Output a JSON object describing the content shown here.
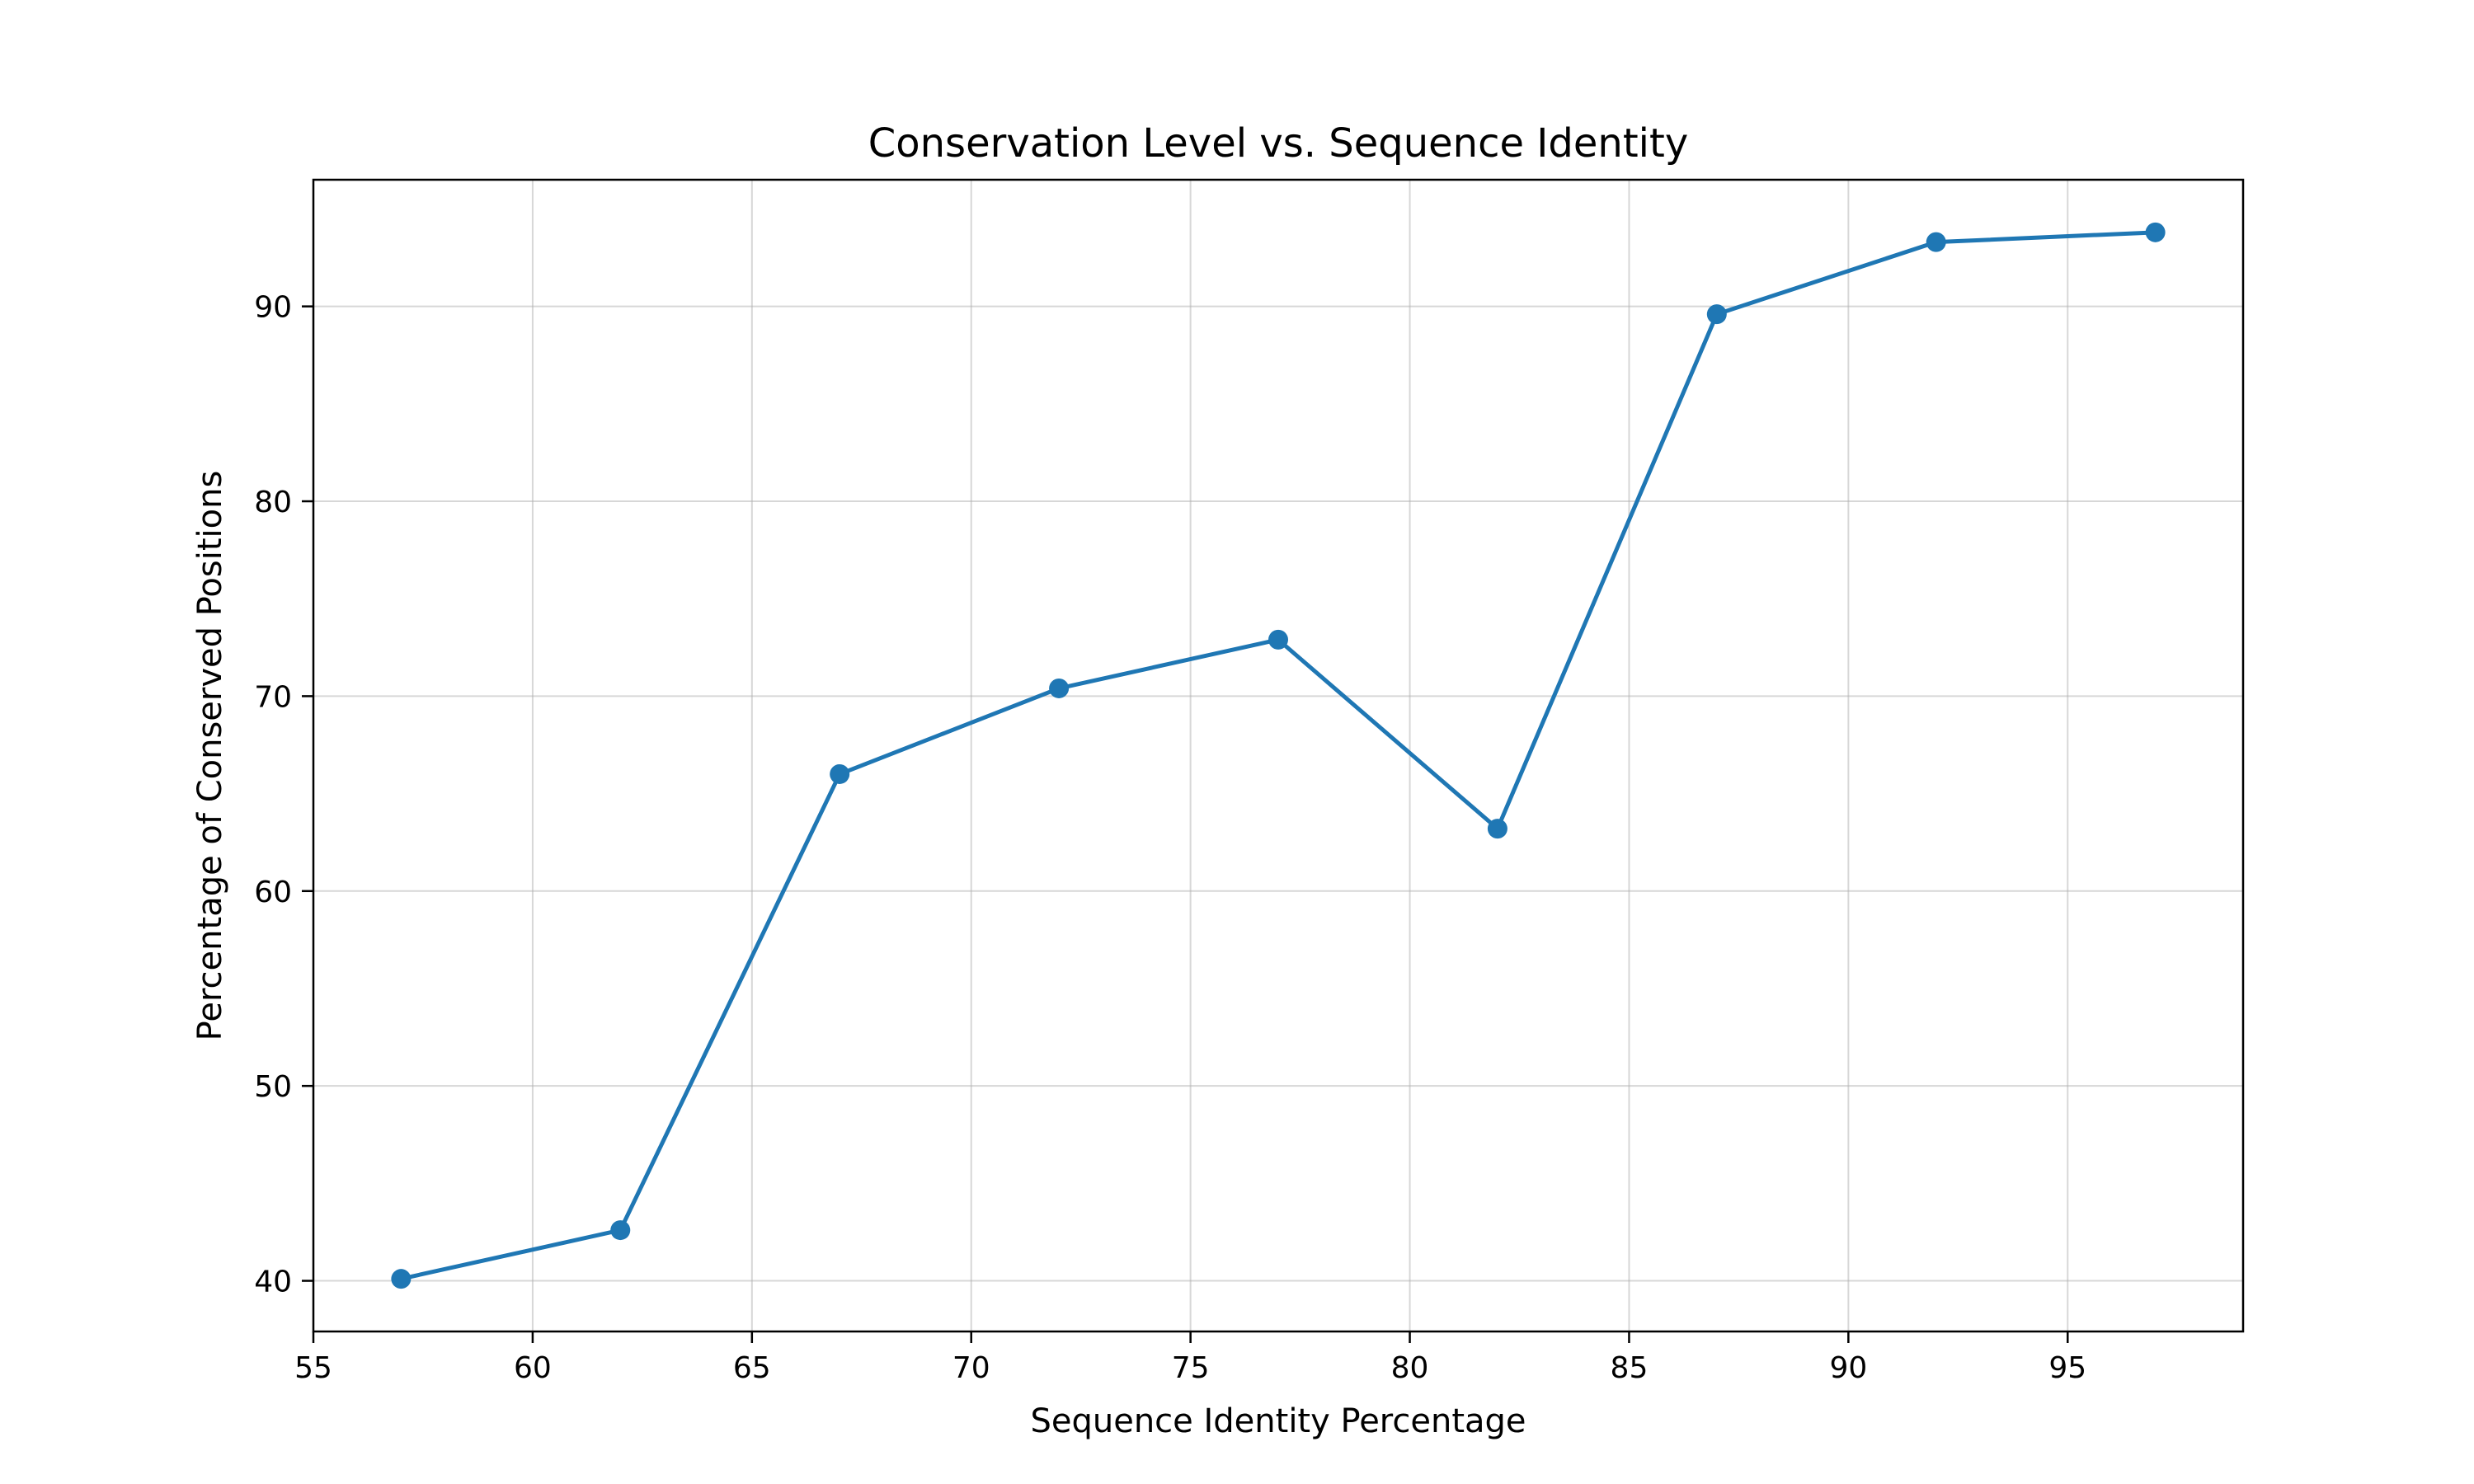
{
  "chart_data": {
    "type": "line",
    "title": "Conservation Level vs. Sequence Identity",
    "xlabel": "Sequence Identity Percentage",
    "ylabel": "Percentage of Conserved Positions",
    "xlim": [
      55,
      99
    ],
    "ylim": [
      37.4,
      96.5
    ],
    "xticks": [
      55,
      60,
      65,
      70,
      75,
      80,
      85,
      90,
      95
    ],
    "yticks": [
      40,
      50,
      60,
      70,
      80,
      90
    ],
    "grid": true,
    "legend": "none",
    "series": [
      {
        "color": "#1f77b4",
        "marker": "circle",
        "x": [
          57,
          62,
          67,
          72,
          77,
          82,
          87,
          92,
          97
        ],
        "y": [
          40.1,
          42.6,
          66.0,
          70.4,
          72.9,
          63.2,
          89.6,
          93.3,
          93.8
        ]
      }
    ]
  }
}
